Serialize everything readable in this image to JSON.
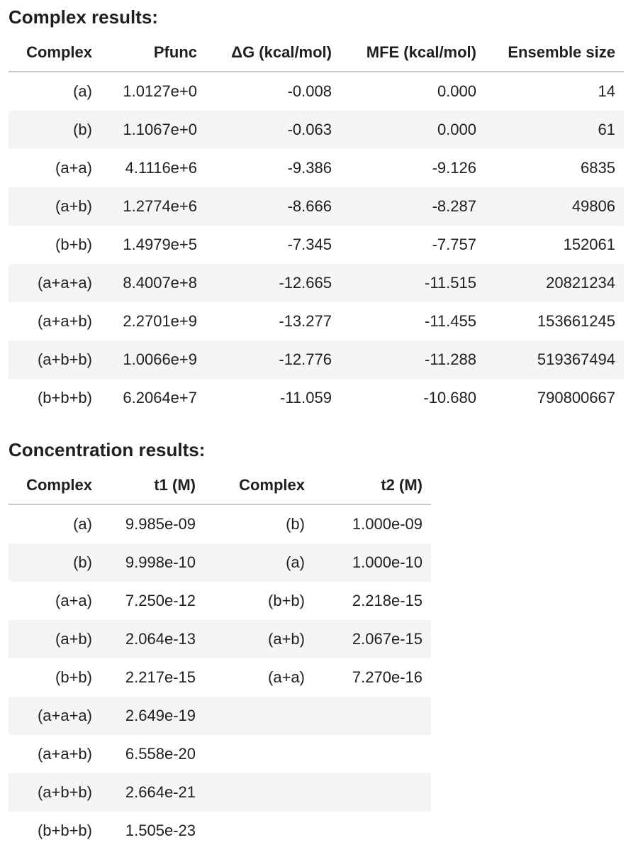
{
  "complex_results": {
    "title": "Complex results:",
    "headers": [
      "Complex",
      "Pfunc",
      "ΔG (kcal/mol)",
      "MFE (kcal/mol)",
      "Ensemble size"
    ],
    "rows": [
      [
        "(a)",
        "1.0127e+0",
        "-0.008",
        "0.000",
        "14"
      ],
      [
        "(b)",
        "1.1067e+0",
        "-0.063",
        "0.000",
        "61"
      ],
      [
        "(a+a)",
        "4.1116e+6",
        "-9.386",
        "-9.126",
        "6835"
      ],
      [
        "(a+b)",
        "1.2774e+6",
        "-8.666",
        "-8.287",
        "49806"
      ],
      [
        "(b+b)",
        "1.4979e+5",
        "-7.345",
        "-7.757",
        "152061"
      ],
      [
        "(a+a+a)",
        "8.4007e+8",
        "-12.665",
        "-11.515",
        "20821234"
      ],
      [
        "(a+a+b)",
        "2.2701e+9",
        "-13.277",
        "-11.455",
        "153661245"
      ],
      [
        "(a+b+b)",
        "1.0066e+9",
        "-12.776",
        "-11.288",
        "519367494"
      ],
      [
        "(b+b+b)",
        "6.2064e+7",
        "-11.059",
        "-10.680",
        "790800667"
      ]
    ]
  },
  "concentration_results": {
    "title": "Concentration results:",
    "headers": [
      "Complex",
      "t1 (M)",
      "Complex",
      "t2 (M)"
    ],
    "rows": [
      [
        "(a)",
        "9.985e-09",
        "(b)",
        "1.000e-09"
      ],
      [
        "(b)",
        "9.998e-10",
        "(a)",
        "1.000e-10"
      ],
      [
        "(a+a)",
        "7.250e-12",
        "(b+b)",
        "2.218e-15"
      ],
      [
        "(a+b)",
        "2.064e-13",
        "(a+b)",
        "2.067e-15"
      ],
      [
        "(b+b)",
        "2.217e-15",
        "(a+a)",
        "7.270e-16"
      ],
      [
        "(a+a+a)",
        "2.649e-19",
        "",
        ""
      ],
      [
        "(a+a+b)",
        "6.558e-20",
        "",
        ""
      ],
      [
        "(a+b+b)",
        "2.664e-21",
        "",
        ""
      ],
      [
        "(b+b+b)",
        "1.505e-23",
        "",
        ""
      ]
    ]
  }
}
